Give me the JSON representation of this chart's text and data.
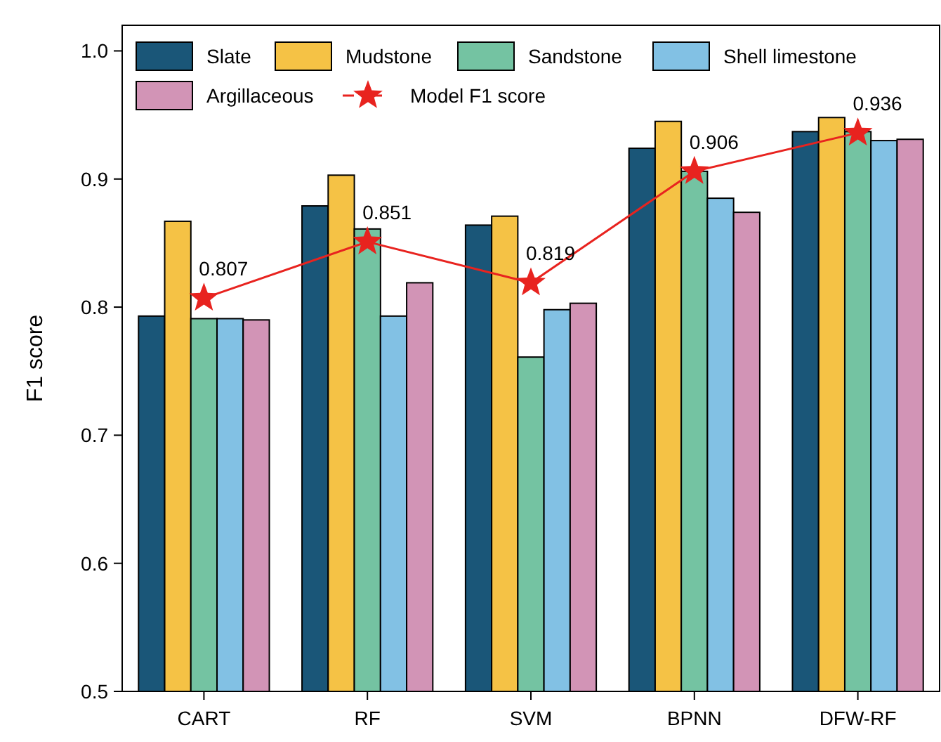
{
  "chart_data": {
    "type": "bar",
    "ylabel": "F1 score",
    "categories": [
      "CART",
      "RF",
      "SVM",
      "BPNN",
      "DFW-RF"
    ],
    "ylim": [
      0.5,
      1.02
    ],
    "yticks": [
      0.5,
      0.6,
      0.7,
      0.8,
      0.9,
      {
        "value": 1.0,
        "label": "1.0"
      }
    ],
    "grid": false,
    "legend": "top",
    "series": [
      {
        "name": "Slate",
        "color": "#1a5678",
        "values": [
          0.793,
          0.879,
          0.864,
          0.924,
          0.937
        ]
      },
      {
        "name": "Mudstone",
        "color": "#f5c245",
        "values": [
          0.867,
          0.903,
          0.871,
          0.945,
          0.948
        ]
      },
      {
        "name": "Sandstone",
        "color": "#74c3a2",
        "values": [
          0.791,
          0.861,
          0.761,
          0.906,
          0.937
        ]
      },
      {
        "name": "Shell limestone",
        "color": "#82c1e4",
        "values": [
          0.791,
          0.793,
          0.798,
          0.885,
          0.93
        ]
      },
      {
        "name": "Argillaceous",
        "color": "#d294b6",
        "values": [
          0.79,
          0.819,
          0.803,
          0.874,
          0.931
        ]
      },
      {
        "name": "Model F1 score",
        "type": "line",
        "color": "#e8231f",
        "marker": "star",
        "line_style": "solid",
        "values": [
          0.807,
          0.851,
          0.819,
          0.906,
          0.936
        ],
        "value_labels": [
          "0.807",
          "0.851",
          "0.819",
          "0.906",
          "0.936"
        ]
      }
    ]
  }
}
